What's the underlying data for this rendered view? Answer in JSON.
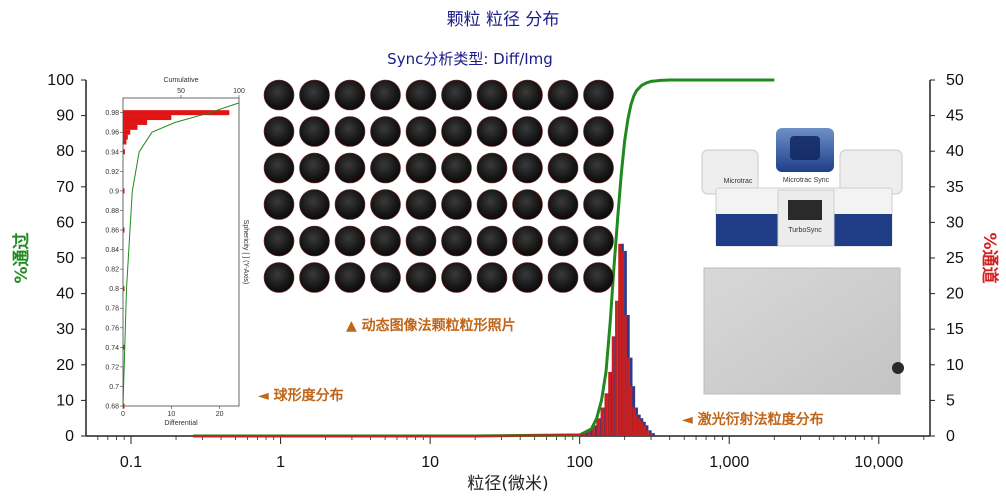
{
  "chart_data": {
    "type": "bar",
    "title": "颗粒 粒径 分布",
    "subtitle": "Sync分析类型: Diff/Img",
    "xlabel": "粒径(微米)",
    "ylabel_left": "%通过",
    "ylabel_right": "%通道",
    "x_scale": "log",
    "xlim": [
      0.05,
      22000
    ],
    "ylim_left": [
      0,
      100
    ],
    "ylim_right": [
      0,
      50
    ],
    "x_ticks": [
      {
        "value": 0.1,
        "label": "0.1"
      },
      {
        "value": 1,
        "label": "1"
      },
      {
        "value": 10,
        "label": "10"
      },
      {
        "value": 100,
        "label": "100"
      },
      {
        "value": 1000,
        "label": "1,000"
      },
      {
        "value": 10000,
        "label": "10,000"
      }
    ],
    "y_ticks_left": [
      "0",
      "10",
      "20",
      "30",
      "40",
      "50",
      "60",
      "70",
      "80",
      "90",
      "100"
    ],
    "y_ticks_right": [
      "0",
      "5",
      "10",
      "15",
      "20",
      "25",
      "30",
      "35",
      "40",
      "45",
      "50"
    ],
    "grid": false,
    "series": [
      {
        "name": "",
        "kind": "line",
        "axis": "left",
        "color": "#1f8a1f",
        "x": [
          0.26,
          20,
          100,
          120,
          130,
          140,
          150,
          160,
          170,
          180,
          190,
          200,
          210,
          220,
          230,
          240,
          260,
          280,
          300,
          350,
          400,
          500,
          700,
          1000,
          1500,
          2000
        ],
        "y": [
          0,
          0,
          0.3,
          2,
          5,
          10,
          18,
          32,
          48,
          62,
          74,
          83,
          89,
          93,
          95.5,
          97,
          98.5,
          99.2,
          99.6,
          99.9,
          100,
          100,
          100,
          100,
          100,
          100
        ]
      },
      {
        "name": "",
        "kind": "bar",
        "axis": "right",
        "colors": [
          "#c81e1e",
          "#2d3a8c"
        ],
        "x": [
          110,
          118,
          126,
          135,
          144,
          153,
          162,
          171,
          180,
          189,
          198,
          207,
          216,
          225,
          235,
          245,
          255,
          265,
          276,
          290,
          305
        ],
        "y": [
          0.5,
          1.0,
          1.5,
          2.5,
          4,
          6,
          9,
          14,
          19,
          27,
          26,
          17,
          11,
          7,
          4,
          3,
          2.5,
          2,
          1.5,
          0.8,
          0.4
        ]
      },
      {
        "name": "",
        "kind": "line",
        "axis": "right",
        "color": "#c81e1e",
        "x": [
          0.26,
          20,
          40,
          60,
          80,
          100,
          110
        ],
        "y": [
          0,
          0,
          0.05,
          0.1,
          0.15,
          0.2,
          0.3
        ]
      }
    ],
    "annotations": [
      {
        "text": "▲  动态图像法颗粒粒形照片"
      },
      {
        "text": "◄  球形度分布"
      },
      {
        "text": "◄  激光衍射法粒度分布"
      }
    ],
    "inset": {
      "top_label": "Cumulative",
      "top_ticks": [
        "50",
        "100"
      ],
      "bottom_label": "Differential",
      "bottom_ticks": [
        "0",
        "10",
        "20"
      ],
      "right_label": "Sphericity [ ] (Y-Axis)",
      "y_ticks": [
        "0.98",
        "0.96",
        "0.94",
        "0.92",
        "0.9",
        "0.88",
        "0.86",
        "0.84",
        "0.82",
        "0.8",
        "0.78",
        "0.76",
        "0.74",
        "0.72",
        "0.7",
        "0.68"
      ],
      "ylim": [
        0.68,
        0.995
      ],
      "differential_values": [
        [
          0.98,
          22
        ],
        [
          0.975,
          10
        ],
        [
          0.97,
          5
        ],
        [
          0.965,
          3
        ],
        [
          0.96,
          1.5
        ],
        [
          0.955,
          1
        ],
        [
          0.95,
          0.7
        ],
        [
          0.94,
          0.4
        ],
        [
          0.9,
          0.3
        ],
        [
          0.86,
          0.3
        ],
        [
          0.8,
          0.3
        ],
        [
          0.74,
          0.3
        ],
        [
          0.68,
          0.3
        ]
      ],
      "cumulative_values": [
        [
          0.68,
          0
        ],
        [
          0.8,
          3
        ],
        [
          0.9,
          8
        ],
        [
          0.94,
          14
        ],
        [
          0.96,
          25
        ],
        [
          0.97,
          45
        ],
        [
          0.98,
          75
        ],
        [
          0.99,
          100
        ]
      ]
    },
    "photos": {
      "rows": 6,
      "cols": 10,
      "instrument_brand": "Microtrac Sync",
      "instrument_side_label": "Microtrac",
      "instrument_panel_label": "TurboSync"
    }
  }
}
